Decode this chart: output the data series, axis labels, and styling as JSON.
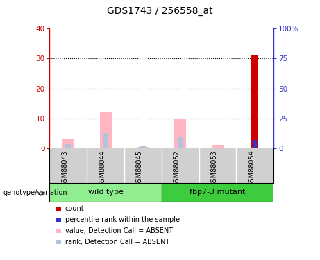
{
  "title": "GDS1743 / 256558_at",
  "samples": [
    "GSM88043",
    "GSM88044",
    "GSM88045",
    "GSM88052",
    "GSM88053",
    "GSM88054"
  ],
  "count_values": [
    0,
    0,
    0,
    0,
    0,
    31
  ],
  "percentile_rank_values": [
    0,
    0,
    0,
    0,
    0,
    7
  ],
  "value_absent": [
    3,
    12,
    0.5,
    10,
    1,
    0
  ],
  "rank_absent": [
    1.5,
    5,
    0.6,
    4,
    0.2,
    0
  ],
  "ylim_left": [
    0,
    40
  ],
  "ylim_right": [
    0,
    100
  ],
  "yticks_left": [
    0,
    10,
    20,
    30,
    40
  ],
  "yticks_right": [
    0,
    25,
    50,
    75,
    100
  ],
  "ytick_labels_right": [
    "0",
    "25",
    "50",
    "75",
    "100%"
  ],
  "count_color": "#cc0000",
  "percentile_color": "#3333cc",
  "value_absent_color": "#FFB6C1",
  "rank_absent_color": "#B0C4DE",
  "grid_color": "black",
  "wildtype_group": [
    "GSM88043",
    "GSM88044",
    "GSM88045"
  ],
  "mutant_group": [
    "GSM88052",
    "GSM88053",
    "GSM88054"
  ],
  "wildtype_label": "wild type",
  "mutant_label": "fbp7-3 mutant",
  "group_color_light": "#90EE90",
  "group_color_bright": "#3DCC3D",
  "sample_bg_color": "#d0d0d0",
  "genotype_label": "genotype/variation",
  "legend_items": [
    {
      "label": "count",
      "color": "#cc0000"
    },
    {
      "label": "percentile rank within the sample",
      "color": "#3333cc"
    },
    {
      "label": "value, Detection Call = ABSENT",
      "color": "#FFB6C1"
    },
    {
      "label": "rank, Detection Call = ABSENT",
      "color": "#B0C4DE"
    }
  ]
}
